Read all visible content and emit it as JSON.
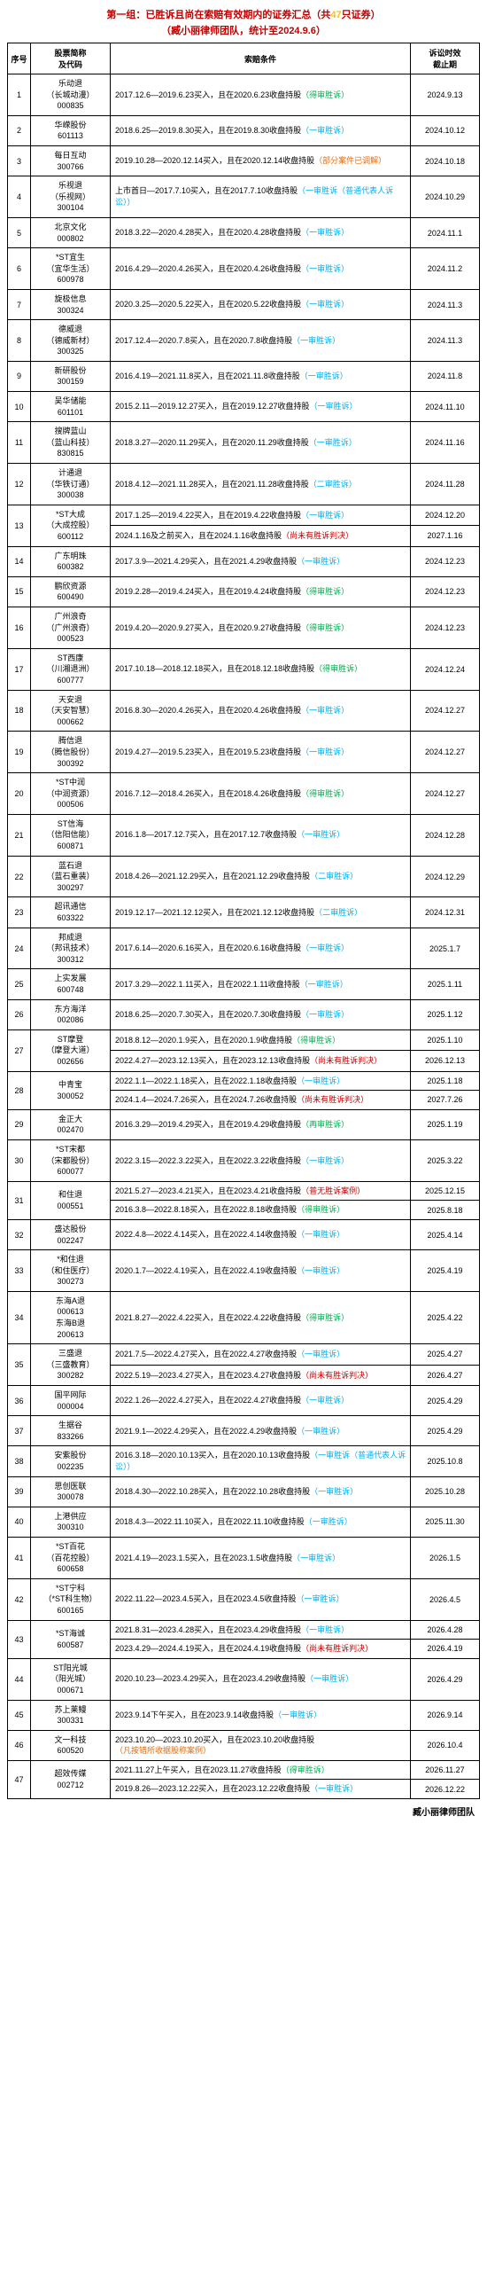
{
  "title_prefix": "第一组：已胜诉且尚在索赔有效期内的证券汇总（共",
  "title_count": "47",
  "title_suffix": "只证券）",
  "subtitle": "（臧小丽律师团队，统计至2024.9.6）",
  "headers": {
    "seq": "序号",
    "stock": "股票简称\n及代码",
    "cond": "索赔条件",
    "deadline": "诉讼时效\n截止期"
  },
  "footer": "臧小丽律师团队",
  "rows": [
    {
      "n": 1,
      "stock": "乐动退\n（长城动漫）\n000835",
      "cond": "2017.12.6—2019.6.23买入，且在2020.6.23收盘持股",
      "tag": "（得审胜诉）",
      "tc": "green",
      "dl": "2024.9.13"
    },
    {
      "n": 2,
      "stock": "华嵘股份\n601113",
      "cond": "2018.6.25—2019.8.30买入，且在2019.8.30收盘持股",
      "tag": "（一审胜诉）",
      "tc": "blue",
      "dl": "2024.10.12"
    },
    {
      "n": 3,
      "stock": "每日互动\n300766",
      "cond": "2019.10.28—2020.12.14买入，且在2020.12.14收盘持股",
      "tag": "（部分案件已调解）",
      "tc": "orange",
      "dl": "2024.10.18"
    },
    {
      "n": 4,
      "stock": "乐视退\n（乐视网）\n300104",
      "cond": "上市首日—2017.7.10买入，且在2017.7.10收盘持股",
      "tag": "（一审胜诉（普通代表人诉讼））",
      "tc": "blue",
      "dl": "2024.10.29"
    },
    {
      "n": 5,
      "stock": "北京文化\n000802",
      "cond": "2018.3.22—2020.4.28买入，且在2020.4.28收盘持股",
      "tag": "（一审胜诉）",
      "tc": "blue",
      "dl": "2024.11.1"
    },
    {
      "n": 6,
      "stock": "*ST宜生\n（宜华生活）\n600978",
      "cond": "2016.4.29—2020.4.26买入，且在2020.4.26收盘持股",
      "tag": "（一审胜诉）",
      "tc": "blue",
      "dl": "2024.11.2"
    },
    {
      "n": 7,
      "stock": "旋极信息\n300324",
      "cond": "2020.3.25—2020.5.22买入，且在2020.5.22收盘持股",
      "tag": "（一审胜诉）",
      "tc": "blue",
      "dl": "2024.11.3"
    },
    {
      "n": 8,
      "stock": "德威退\n（德威新材）\n300325",
      "cond": "2017.12.4—2020.7.8买入，且在2020.7.8收盘持股",
      "tag": "（一审胜诉）",
      "tc": "blue",
      "dl": "2024.11.3"
    },
    {
      "n": 9,
      "stock": "新研股份\n300159",
      "cond": "2016.4.19—2021.11.8买入，且在2021.11.8收盘持股",
      "tag": "（一审胜诉）",
      "tc": "blue",
      "dl": "2024.11.8"
    },
    {
      "n": 10,
      "stock": "吴华储能\n601101",
      "cond": "2015.2.11—2019.12.27买入，且在2019.12.27收盘持股",
      "tag": "（一审胜诉）",
      "tc": "blue",
      "dl": "2024.11.10"
    },
    {
      "n": 11,
      "stock": "搜牌蓝山\n（蓝山科技）\n830815",
      "cond": "2018.3.27—2020.11.29买入，且在2020.11.29收盘持股",
      "tag": "（一审胜诉）",
      "tc": "blue",
      "dl": "2024.11.16"
    },
    {
      "n": 12,
      "stock": "计通退\n（华铁订通）\n300038",
      "cond": "2018.4.12—2021.11.28买入，且在2021.11.28收盘持股",
      "tag": "（二审胜诉）",
      "tc": "blue",
      "dl": "2024.11.28"
    },
    {
      "n": 13,
      "stock": "*ST大成\n（大成控股）\n600112",
      "cond": "2017.1.25—2019.4.22买入，且在2019.4.22收盘持股",
      "tag": "（一审胜诉）",
      "tc": "blue",
      "dl": "2024.12.20",
      "extra": "2024.1.16及之前买入，且在2024.1.16收盘持股",
      "extra_tag": "（尚未有胜诉判决）",
      "etc": "red",
      "edl": "2027.1.16"
    },
    {
      "n": 14,
      "stock": "广东明珠\n600382",
      "cond": "2017.3.9—2021.4.29买入，且在2021.4.29收盘持股",
      "tag": "（一审胜诉）",
      "tc": "blue",
      "dl": "2024.12.23"
    },
    {
      "n": 15,
      "stock": "鹏欣资源\n600490",
      "cond": "2019.2.28—2019.4.24买入，且在2019.4.24收盘持股",
      "tag": "（得审胜诉）",
      "tc": "green",
      "dl": "2024.12.23"
    },
    {
      "n": 16,
      "stock": "广州浪奇\n（广州浪奇）\n000523",
      "cond": "2019.4.20—2020.9.27买入，且在2020.9.27收盘持股",
      "tag": "（得审胜诉）",
      "tc": "green",
      "dl": "2024.12.23"
    },
    {
      "n": 17,
      "stock": "ST西康\n（川湘退洲）\n600777",
      "cond": "2017.10.18—2018.12.18买入，且在2018.12.18收盘持股",
      "tag": "（得审胜诉）",
      "tc": "green",
      "dl": "2024.12.24"
    },
    {
      "n": 18,
      "stock": "天安退\n（天安智慧）\n000662",
      "cond": "2016.8.30—2020.4.26买入，且在2020.4.26收盘持股",
      "tag": "（一审胜诉）",
      "tc": "blue",
      "dl": "2024.12.27"
    },
    {
      "n": 19,
      "stock": "腾信退\n（腾信股份）\n300392",
      "cond": "2019.4.27—2019.5.23买入，且在2019.5.23收盘持股",
      "tag": "（一审胜诉）",
      "tc": "blue",
      "dl": "2024.12.27"
    },
    {
      "n": 20,
      "stock": "*ST中润\n（中润资源）\n000506",
      "cond": "2016.7.12—2018.4.26买入，且在2018.4.26收盘持股",
      "tag": "（得审胜诉）",
      "tc": "green",
      "dl": "2024.12.27"
    },
    {
      "n": 21,
      "stock": "ST信海\n（信阳信能）\n600871",
      "cond": "2016.1.8—2017.12.7买入，且在2017.12.7收盘持股",
      "tag": "（一审胜诉）",
      "tc": "blue",
      "dl": "2024.12.28"
    },
    {
      "n": 22,
      "stock": "蓝石退\n（蓝石重装）\n300297",
      "cond": "2018.4.26—2021.12.29买入，且在2021.12.29收盘持股",
      "tag": "（二审胜诉）",
      "tc": "blue",
      "dl": "2024.12.29"
    },
    {
      "n": 23,
      "stock": "超讯通信\n603322",
      "cond": "2019.12.17—2021.12.12买入，且在2021.12.12收盘持股",
      "tag": "（二审胜诉）",
      "tc": "blue",
      "dl": "2024.12.31"
    },
    {
      "n": 24,
      "stock": "邦成退\n（邦讯技术）\n300312",
      "cond": "2017.6.14—2020.6.16买入，且在2020.6.16收盘持股",
      "tag": "（一审胜诉）",
      "tc": "blue",
      "dl": "2025.1.7"
    },
    {
      "n": 25,
      "stock": "上实发展\n600748",
      "cond": "2017.3.29—2022.1.11买入，且在2022.1.11收盘持股",
      "tag": "（一审胜诉）",
      "tc": "blue",
      "dl": "2025.1.11"
    },
    {
      "n": 26,
      "stock": "东方海洋\n002086",
      "cond": "2018.6.25—2020.7.30买入，且在2020.7.30收盘持股",
      "tag": "（一审胜诉）",
      "tc": "blue",
      "dl": "2025.1.12"
    },
    {
      "n": 27,
      "stock": "ST摩登\n（摩登大道）\n002656",
      "cond": "2018.8.12—2020.1.9买入，且在2020.1.9收盘持股",
      "tag": "（得审胜诉）",
      "tc": "green",
      "dl": "2025.1.10",
      "extra": "2022.4.27—2023.12.13买入，且在2023.12.13收盘持股",
      "extra_tag": "（尚未有胜诉判决）",
      "etc": "red",
      "edl": "2026.12.13"
    },
    {
      "n": 28,
      "stock": "中青宝\n300052",
      "cond": "2022.1.1—2022.1.18买入，且在2022.1.18收盘持股",
      "tag": "（一审胜诉）",
      "tc": "blue",
      "dl": "2025.1.18",
      "extra": "2024.1.4—2024.7.26买入，且在2024.7.26收盘持股",
      "extra_tag": "（尚未有胜诉判决）",
      "etc": "red",
      "edl": "2027.7.26"
    },
    {
      "n": 29,
      "stock": "金正大\n002470",
      "cond": "2016.3.29—2019.4.29买入，且在2019.4.29收盘持股",
      "tag": "（再审胜诉）",
      "tc": "green",
      "dl": "2025.1.19"
    },
    {
      "n": 30,
      "stock": "*ST宋都\n（宋都股份）\n600077",
      "cond": "2022.3.15—2022.3.22买入，且在2022.3.22收盘持股",
      "tag": "（一审胜诉）",
      "tc": "blue",
      "dl": "2025.3.22"
    },
    {
      "n": 31,
      "stock": "和住退\n000551",
      "cond": "2021.5.27—2023.4.21买入，且在2023.4.21收盘持股",
      "tag": "（普无胜诉案例）",
      "tc": "red",
      "dl": "2025.12.15",
      "extra": "2016.3.8—2022.8.18买入，且在2022.8.18收盘持股",
      "extra_tag": "（得审胜诉）",
      "etc": "green",
      "edl": "2025.8.18"
    },
    {
      "n": 32,
      "stock": "盛达股份\n002247",
      "cond": "2022.4.8—2022.4.14买入，且在2022.4.14收盘持股",
      "tag": "（一审胜诉）",
      "tc": "blue",
      "dl": "2025.4.14"
    },
    {
      "n": 33,
      "stock": "*和住退\n（和住医疗）\n300273",
      "cond": "2020.1.7—2022.4.19买入，且在2022.4.19收盘持股",
      "tag": "（一审胜诉）",
      "tc": "blue",
      "dl": "2025.4.19"
    },
    {
      "n": 34,
      "stock": "东海A退\n000613\n东海B退\n200613",
      "cond": "2021.8.27—2022.4.22买入，且在2022.4.22收盘持股",
      "tag": "（得审胜诉）",
      "tc": "green",
      "dl": "2025.4.22"
    },
    {
      "n": 35,
      "stock": "三盛退\n（三盛教育）\n300282",
      "cond": "2021.7.5—2022.4.27买入，且在2022.4.27收盘持股",
      "tag": "（一审胜诉）",
      "tc": "blue",
      "dl": "2025.4.27",
      "extra": "2022.5.19—2023.4.27买入，且在2023.4.27收盘持股",
      "extra_tag": "（尚未有胜诉判决）",
      "etc": "red",
      "edl": "2026.4.27"
    },
    {
      "n": 36,
      "stock": "国平网际\n000004",
      "cond": "2022.1.26—2022.4.27买入，且在2022.4.27收盘持股",
      "tag": "（一审胜诉）",
      "tc": "blue",
      "dl": "2025.4.29"
    },
    {
      "n": 37,
      "stock": "生据谷\n833266",
      "cond": "2021.9.1—2022.4.29买入，且在2022.4.29收盘持股",
      "tag": "（一审胜诉）",
      "tc": "blue",
      "dl": "2025.4.29"
    },
    {
      "n": 38,
      "stock": "安紫股份\n002235",
      "cond": "2016.3.18—2020.10.13买入，且在2020.10.13收盘持股",
      "tag": "（一审胜诉（普通代表人诉讼））",
      "tc": "blue",
      "dl": "2025.10.8"
    },
    {
      "n": 39,
      "stock": "思创医联\n300078",
      "cond": "2018.4.30—2022.10.28买入，且在2022.10.28收盘持股",
      "tag": "（一审胜诉）",
      "tc": "blue",
      "dl": "2025.10.28"
    },
    {
      "n": 40,
      "stock": "上港供应\n300310",
      "cond": "2018.4.3—2022.11.10买入，且在2022.11.10收盘持股",
      "tag": "（一审胜诉）",
      "tc": "blue",
      "dl": "2025.11.30"
    },
    {
      "n": 41,
      "stock": "*ST百花\n（百花控股）\n600658",
      "cond": "2021.4.19—2023.1.5买入，且在2023.1.5收盘持股",
      "tag": "（一审胜诉）",
      "tc": "blue",
      "dl": "2026.1.5"
    },
    {
      "n": 42,
      "stock": "*ST宁科\n（*ST科生物）\n600165",
      "cond": "2022.11.22—2023.4.5买入，且在2023.4.5收盘持股",
      "tag": "（一审胜诉）",
      "tc": "blue",
      "dl": "2026.4.5"
    },
    {
      "n": 43,
      "stock": "*ST海诚\n600587",
      "cond": "2021.8.31—2023.4.28买入，且在2023.4.29收盘持股",
      "tag": "（一审胜诉）",
      "tc": "blue",
      "dl": "2026.4.28",
      "extra": "2023.4.29—2024.4.19买入，且在2024.4.19收盘持股",
      "extra_tag": "（尚未有胜诉判决）",
      "etc": "red",
      "edl": "2026.4.19"
    },
    {
      "n": 44,
      "stock": "ST阳光城\n（阳光城）\n000671",
      "cond": "2020.10.23—2023.4.29买入，且在2023.4.29收盘持股",
      "tag": "（一审胜诉）",
      "tc": "blue",
      "dl": "2026.4.29"
    },
    {
      "n": 45,
      "stock": "苏上莱鳗\n300331",
      "cond": "2023.9.14下午买入，且在2023.9.14收盘持股",
      "tag": "（一审胜诉）",
      "tc": "blue",
      "dl": "2026.9.14"
    },
    {
      "n": 46,
      "stock": "文一科技\n600520",
      "cond": "2023.10.20—2023.10.20买入，且在2023.10.20收盘持股",
      "tag": "（凡按错所收据股称案例）",
      "tc": "orange",
      "dl": "2026.10.4"
    },
    {
      "n": 47,
      "stock": "超效传媒\n002712",
      "cond": "2021.11.27上午买入，且在2023.11.27收盘持股",
      "tag": "（得审胜诉）",
      "tc": "green",
      "dl": "2026.11.27",
      "extra": "2019.8.26—2023.12.22买入，且在2023.12.22收盘持股",
      "extra_tag": "（一审胜诉）",
      "etc": "blue",
      "edl": "2026.12.22"
    }
  ]
}
